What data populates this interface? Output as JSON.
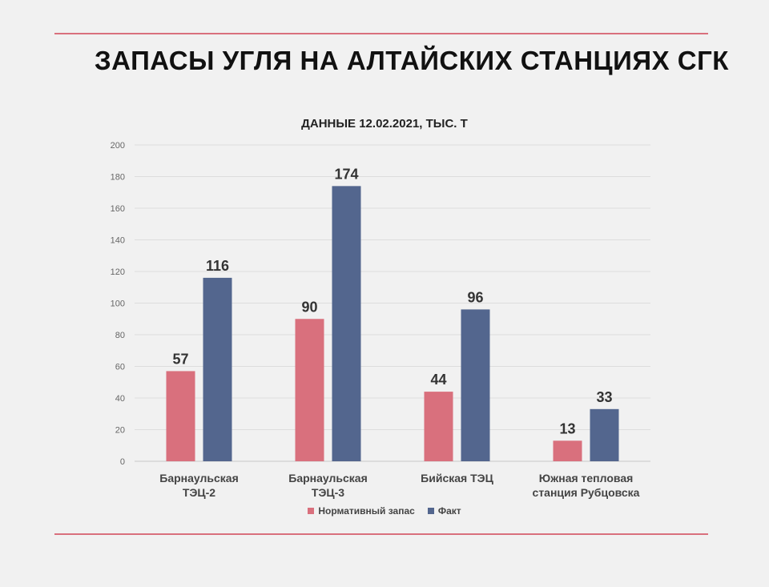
{
  "title": "ЗАПАСЫ УГЛЯ НА АЛТАЙСКИХ СТАНЦИЯХ СГК",
  "colors": {
    "rule": "#d9707d",
    "normative": "#d9707d",
    "fact": "#53668e"
  },
  "chart_data": {
    "type": "bar",
    "title": "ДАННЫЕ 12.02.2021, ТЫС. Т",
    "categories": [
      [
        "Барнаульская",
        "ТЭЦ-2"
      ],
      [
        "Барнаульская",
        "ТЭЦ-3"
      ],
      [
        "Бийская ТЭЦ"
      ],
      [
        "Южная тепловая",
        "станция Рубцовска"
      ]
    ],
    "series": [
      {
        "name": "Нормативный запас",
        "color": "#d9707d",
        "values": [
          57,
          90,
          44,
          13
        ]
      },
      {
        "name": "Факт",
        "color": "#53668e",
        "values": [
          116,
          174,
          96,
          33
        ]
      }
    ],
    "ylim": [
      0,
      200
    ],
    "yticks": [
      0,
      20,
      40,
      60,
      80,
      100,
      120,
      140,
      160,
      180,
      200
    ],
    "grid": true,
    "legend": "bottom"
  }
}
